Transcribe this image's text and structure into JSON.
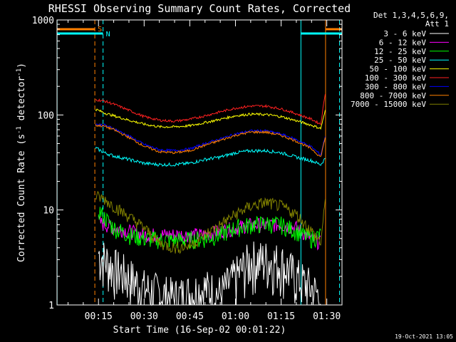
{
  "chart_data": {
    "type": "line",
    "title": "RHESSI Observing Summary Count Rates, Corrected",
    "xlabel": "Start Time (16-Sep-02 00:01:22)",
    "ylabel": "Corrected Count Rate (s",
    "ylabel_sup1": "-1",
    "ylabel_mid": " detector",
    "ylabel_sup2": "-1",
    "ylabel_end": ")",
    "y_scale": "log",
    "ylim": [
      1,
      1000
    ],
    "xlim_minutes": [
      1.37,
      95.0
    ],
    "x_ticks": [
      {
        "value": 15,
        "label": "00:15"
      },
      {
        "value": 30,
        "label": "00:30"
      },
      {
        "value": 45,
        "label": "00:45"
      },
      {
        "value": 60,
        "label": "01:00"
      },
      {
        "value": 75,
        "label": "01:15"
      },
      {
        "value": 90,
        "label": "01:30"
      }
    ],
    "y_ticks": [
      {
        "value": 1,
        "label": "1"
      },
      {
        "value": 10,
        "label": "10"
      },
      {
        "value": 100,
        "label": "100"
      },
      {
        "value": 1000,
        "label": "1000"
      }
    ],
    "legend": {
      "header1": "Det 1,3,4,5,6,9,",
      "header2": "Att 1",
      "placement": "right"
    },
    "series": [
      {
        "name": "3 - 6 keV",
        "color": "#ffffff",
        "x": [
          15,
          20,
          25,
          30,
          40,
          50,
          55,
          60,
          65,
          70,
          75,
          80,
          85,
          88
        ],
        "values": [
          3.5,
          2.5,
          2.0,
          1.5,
          1.2,
          1.5,
          1.3,
          2.0,
          3.0,
          3.0,
          2.8,
          2.0,
          1.5,
          1.2
        ]
      },
      {
        "name": "6 - 12 keV",
        "color": "#ff00ff",
        "x": [
          15,
          20,
          25,
          30,
          40,
          50,
          55,
          60,
          65,
          70,
          75,
          80,
          85,
          88
        ],
        "values": [
          7.5,
          6.5,
          6.0,
          5.5,
          5.5,
          5.5,
          6.0,
          6.5,
          7.0,
          7.0,
          7.0,
          6.5,
          5.0,
          4.5
        ]
      },
      {
        "name": "12 - 25 keV",
        "color": "#00ff00",
        "x": [
          15,
          20,
          25,
          30,
          40,
          50,
          55,
          60,
          65,
          70,
          75,
          80,
          85,
          88
        ],
        "values": [
          10,
          6.5,
          5.5,
          5.0,
          4.8,
          5.0,
          5.5,
          6.5,
          7.0,
          7.2,
          7.0,
          6.0,
          5.0,
          5.5
        ]
      },
      {
        "name": "25 - 50 keV",
        "color": "#00ffff",
        "x": [
          14,
          17,
          20,
          25,
          30,
          35,
          40,
          45,
          50,
          55,
          60,
          65,
          70,
          75,
          80,
          85,
          88,
          89.5
        ],
        "values": [
          45,
          40,
          37,
          34,
          31,
          30,
          30,
          31,
          34,
          36,
          40,
          42,
          42,
          40,
          36,
          33,
          30,
          35
        ]
      },
      {
        "name": "50 - 100 keV",
        "color": "#ffff00",
        "x": [
          14,
          17,
          20,
          25,
          30,
          35,
          40,
          45,
          50,
          55,
          60,
          65,
          70,
          75,
          80,
          85,
          88,
          89.5
        ],
        "values": [
          115,
          105,
          98,
          88,
          80,
          75,
          75,
          77,
          83,
          90,
          98,
          102,
          101,
          96,
          87,
          78,
          72,
          110
        ]
      },
      {
        "name": "100 - 300 keV",
        "color": "#ff2020",
        "x": [
          14,
          17,
          20,
          25,
          30,
          35,
          40,
          45,
          50,
          55,
          60,
          65,
          70,
          75,
          80,
          85,
          88,
          89.5
        ],
        "values": [
          145,
          140,
          130,
          112,
          96,
          88,
          86,
          90,
          98,
          108,
          118,
          124,
          124,
          116,
          103,
          90,
          80,
          170
        ]
      },
      {
        "name": "300 - 800 keV",
        "color": "#0000ff",
        "x": [
          14,
          17,
          20,
          25,
          30,
          35,
          40,
          45,
          50,
          55,
          60,
          65,
          70,
          75,
          80,
          85,
          88,
          89.5
        ],
        "values": [
          80,
          78,
          72,
          60,
          49,
          43,
          42,
          44,
          50,
          56,
          63,
          68,
          68,
          63,
          55,
          46,
          38,
          60
        ]
      },
      {
        "name": "800 - 7000 keV",
        "color": "#ff8000",
        "x": [
          14,
          17,
          20,
          25,
          30,
          35,
          40,
          45,
          50,
          55,
          60,
          65,
          70,
          75,
          80,
          85,
          88,
          89.5
        ],
        "values": [
          78,
          76,
          70,
          58,
          47,
          41,
          40,
          42,
          48,
          54,
          61,
          66,
          66,
          61,
          53,
          44,
          36,
          58
        ]
      },
      {
        "name": "7000 - 15000 keV",
        "color": "#808000",
        "x": [
          14,
          17,
          20,
          25,
          30,
          35,
          40,
          45,
          50,
          55,
          60,
          65,
          70,
          75,
          80,
          85,
          88,
          89.5
        ],
        "values": [
          14,
          13,
          11,
          8.5,
          6.5,
          4.5,
          4.0,
          4.2,
          5.5,
          7.0,
          9.0,
          11,
          12,
          11,
          9.0,
          6.0,
          4.5,
          12
        ]
      }
    ],
    "flags": [
      {
        "label": "S",
        "color": "#ff8000",
        "x": 13.8
      },
      {
        "label": "N",
        "color": "#00ffff",
        "x": 16.5
      }
    ],
    "markers": [
      {
        "color": "#00ffff",
        "x": 1.4,
        "style": "solid"
      },
      {
        "color": "#ff8000",
        "x": 13.8,
        "style": "dashed"
      },
      {
        "color": "#00ffff",
        "x": 16.5,
        "style": "dashed"
      },
      {
        "color": "#00ffff",
        "x": 81.5,
        "style": "solid"
      },
      {
        "color": "#ff8000",
        "x": 89.6,
        "style": "solid"
      },
      {
        "color": "#00ffff",
        "x": 94.2,
        "style": "dashed"
      }
    ],
    "footer_date": "19-Oct-2021 13:05"
  }
}
